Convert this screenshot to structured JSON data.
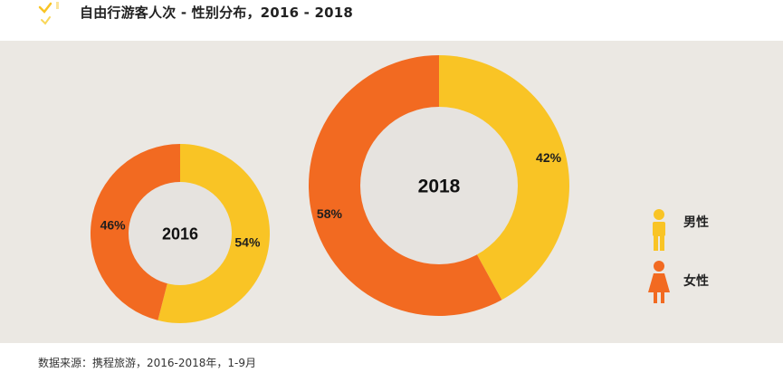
{
  "header": {
    "title": "自由行游客人次 - 性别分布，2016 - 2018"
  },
  "colors": {
    "male": "#f9c425",
    "female": "#f26a21",
    "panel_background": "#ebe8e3",
    "donut_hole": "#e6e3df"
  },
  "chart_data": {
    "type": "pie",
    "title": "自由行游客人次 - 性别分布，2016 - 2018",
    "charts": [
      {
        "year": "2016",
        "slices": [
          {
            "name": "男性",
            "value": 54,
            "label": "54%"
          },
          {
            "name": "女性",
            "value": 46,
            "label": "46%"
          }
        ]
      },
      {
        "year": "2018",
        "slices": [
          {
            "name": "男性",
            "value": 42,
            "label": "42%"
          },
          {
            "name": "女性",
            "value": 58,
            "label": "58%"
          }
        ]
      }
    ],
    "legend": {
      "placement": "right",
      "items": [
        {
          "name": "男性",
          "icon": "male-person-icon"
        },
        {
          "name": "女性",
          "icon": "female-person-icon"
        }
      ]
    }
  },
  "footer": {
    "source": "数据来源：携程旅游，2016-2018年，1-9月"
  }
}
